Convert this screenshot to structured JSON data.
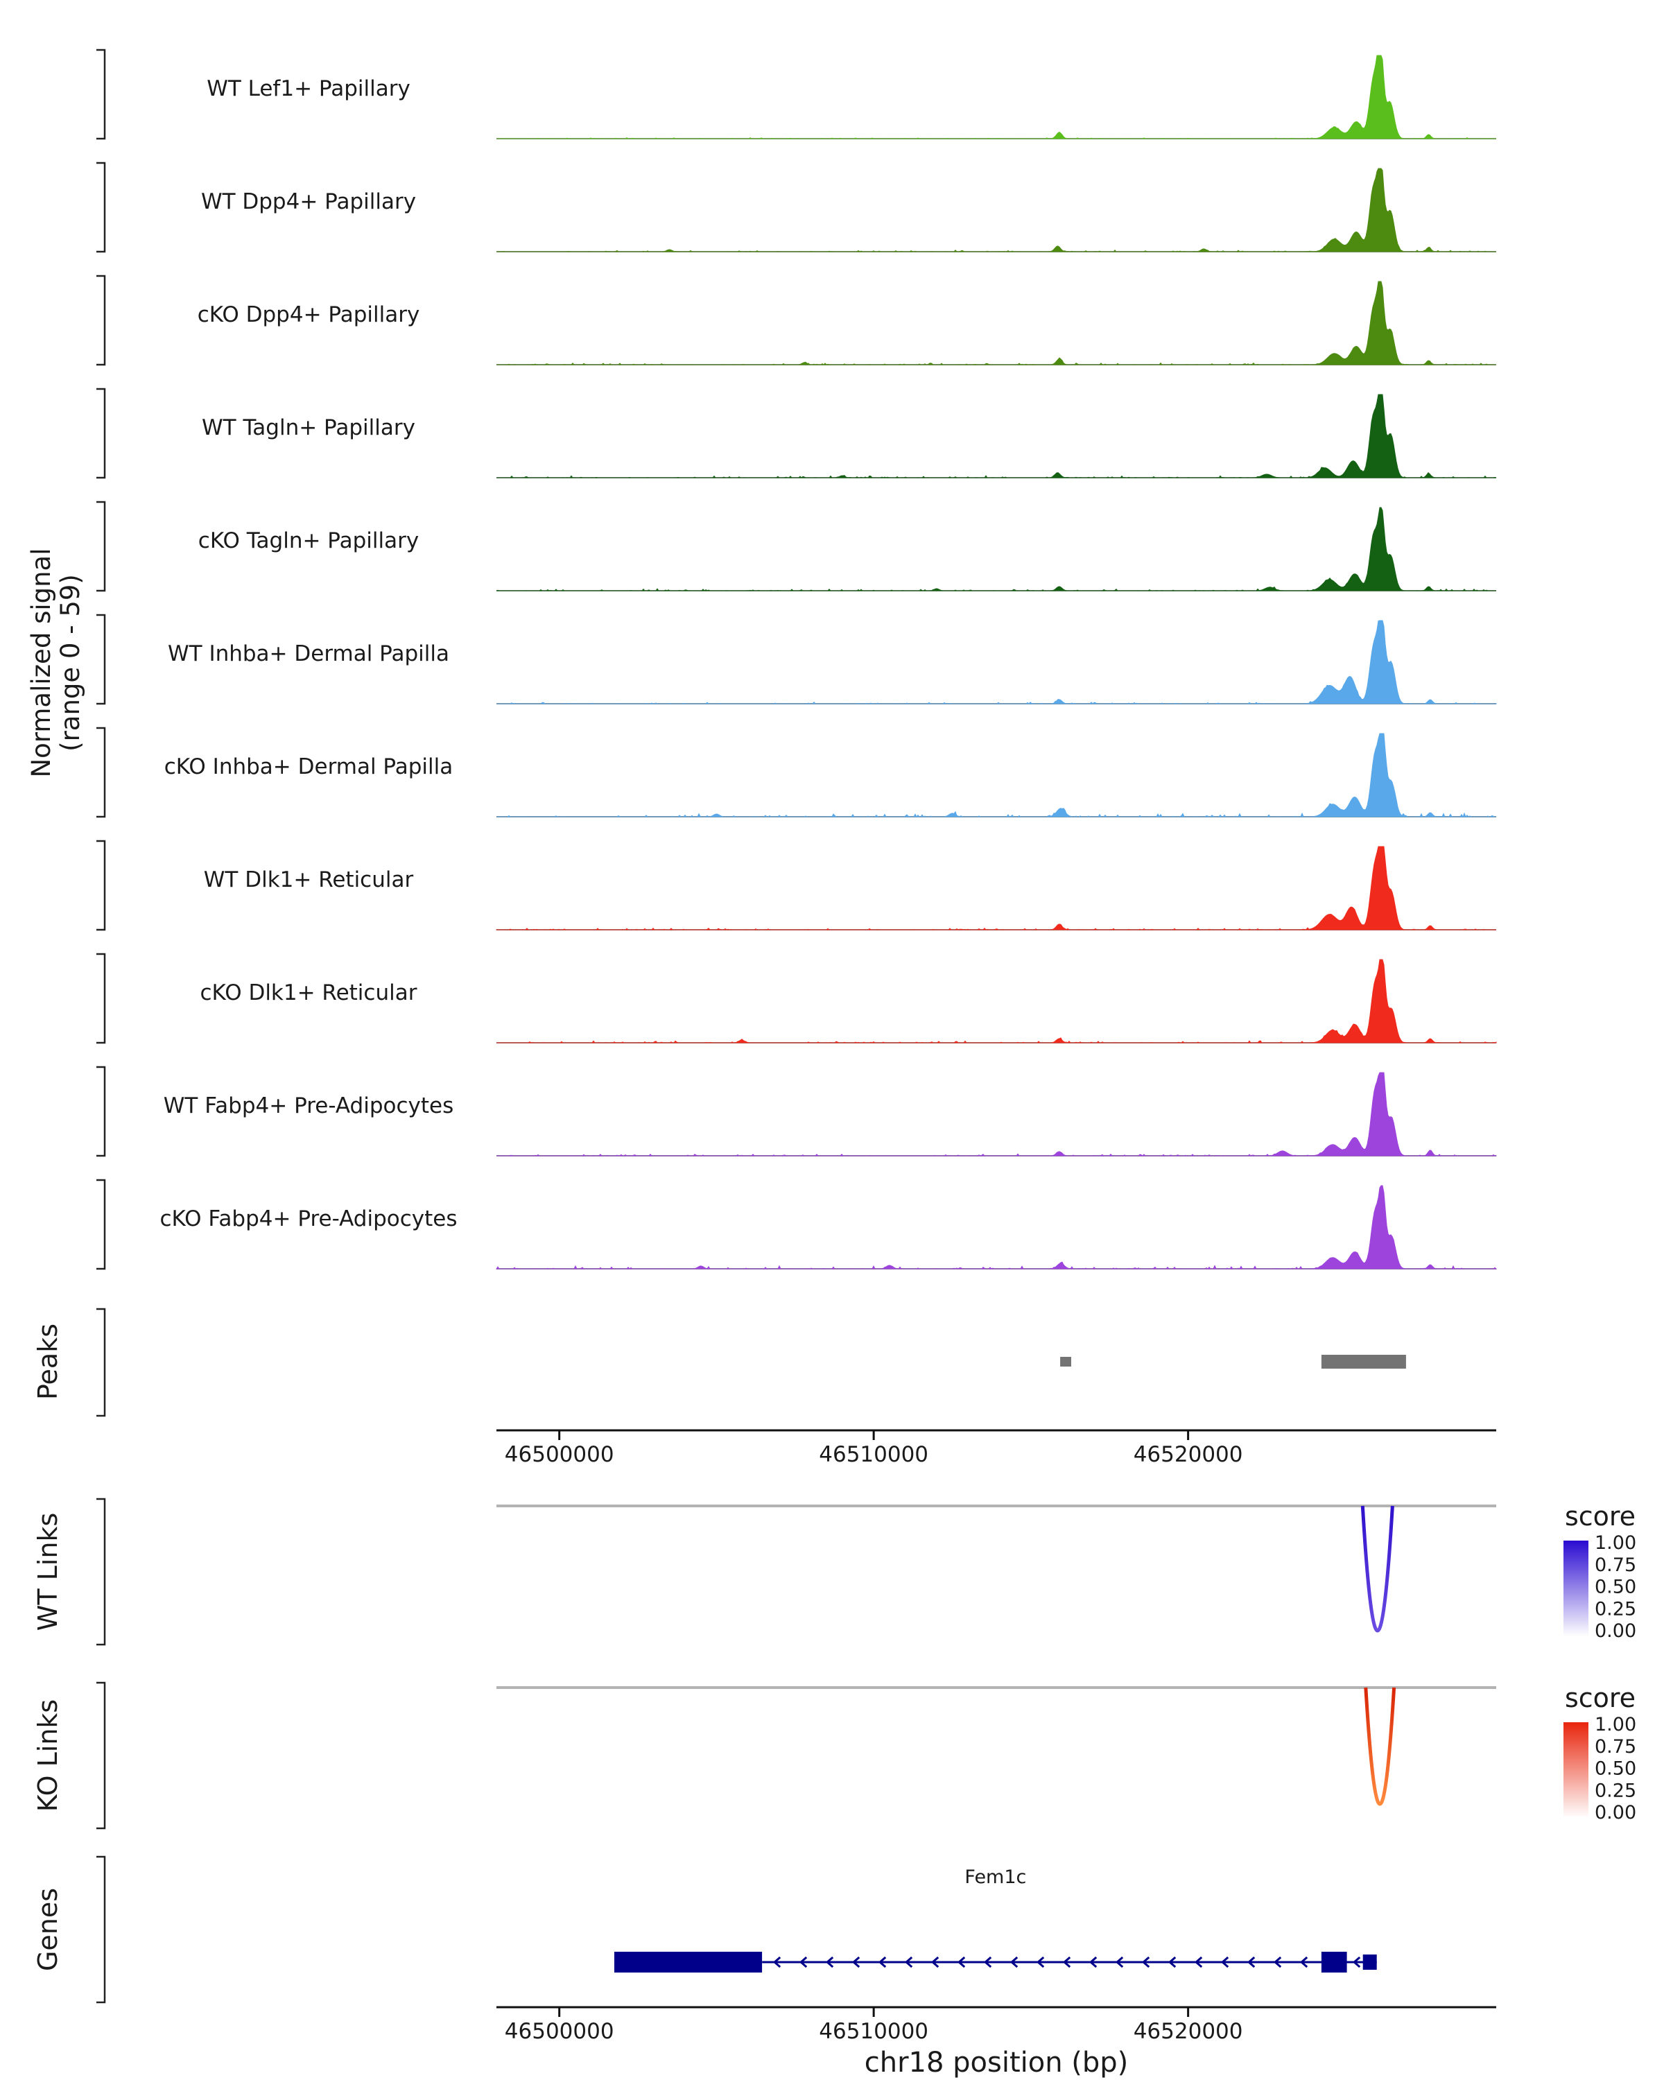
{
  "figure": {
    "y_axis_label_line1": "Normalized signal",
    "y_axis_label_line2": "(range 0 - 59)",
    "peaks_section_label": "Peaks",
    "wt_links_section_label": "WT Links",
    "ko_links_section_label": "KO Links",
    "genes_section_label": "Genes",
    "x_axis_title": "chr18 position (bp)"
  },
  "chart_data": {
    "type": "area",
    "title": "",
    "x_axis": {
      "label": "chr18 position (bp)",
      "bp_min": 46498000,
      "bp_max": 46529800,
      "ticks": [
        46500000,
        46510000,
        46520000
      ],
      "tick_labels": [
        "46500000",
        "46510000",
        "46520000"
      ]
    },
    "y_axis": {
      "label": "Normalized signal (range 0 - 59)",
      "range": [
        0,
        59
      ]
    },
    "signal_tracks": [
      {
        "name": "WT Lef1+ Papillary",
        "color": "#5ABF1C",
        "seed": 11,
        "noise": 1.0,
        "peaks": [
          [
            46515900,
            90,
            4.5
          ],
          [
            46524650,
            220,
            8
          ],
          [
            46525350,
            180,
            12
          ],
          [
            46525900,
            130,
            42
          ],
          [
            46526120,
            95,
            59
          ],
          [
            46526420,
            130,
            26
          ],
          [
            46527650,
            70,
            3
          ]
        ]
      },
      {
        "name": "WT Dpp4+ Papillary",
        "color": "#4C8A10",
        "seed": 22,
        "noise": 1.4,
        "peaks": [
          [
            46503500,
            80,
            1.5
          ],
          [
            46515850,
            90,
            4
          ],
          [
            46520500,
            90,
            2
          ],
          [
            46524650,
            220,
            9
          ],
          [
            46525350,
            180,
            14
          ],
          [
            46525900,
            130,
            45
          ],
          [
            46526130,
            95,
            57
          ],
          [
            46526430,
            130,
            29
          ],
          [
            46527650,
            70,
            3
          ]
        ]
      },
      {
        "name": "cKO Dpp4+ Papillary",
        "color": "#4C8A10",
        "seed": 33,
        "noise": 1.4,
        "peaks": [
          [
            46507800,
            80,
            1.5
          ],
          [
            46515900,
            90,
            4
          ],
          [
            46524650,
            220,
            8
          ],
          [
            46525350,
            180,
            13
          ],
          [
            46525900,
            130,
            40
          ],
          [
            46526130,
            95,
            55
          ],
          [
            46526430,
            130,
            25
          ],
          [
            46527650,
            70,
            3
          ]
        ]
      },
      {
        "name": "WT Tagln+ Papillary",
        "color": "#146114",
        "seed": 44,
        "noise": 1.7,
        "peaks": [
          [
            46509000,
            80,
            1.5
          ],
          [
            46515850,
            90,
            3.5
          ],
          [
            46522500,
            150,
            2.5
          ],
          [
            46524350,
            200,
            7
          ],
          [
            46525250,
            180,
            12
          ],
          [
            46525900,
            130,
            44
          ],
          [
            46526140,
            95,
            59
          ],
          [
            46526440,
            130,
            31
          ],
          [
            46527650,
            70,
            3
          ]
        ]
      },
      {
        "name": "cKO Tagln+ Papillary",
        "color": "#146114",
        "seed": 55,
        "noise": 1.7,
        "peaks": [
          [
            46512000,
            80,
            1.5
          ],
          [
            46515900,
            90,
            3
          ],
          [
            46522600,
            150,
            2.5
          ],
          [
            46524500,
            220,
            8
          ],
          [
            46525300,
            180,
            12
          ],
          [
            46525910,
            130,
            40
          ],
          [
            46526150,
            95,
            52
          ],
          [
            46526440,
            130,
            25
          ],
          [
            46527650,
            70,
            3
          ]
        ]
      },
      {
        "name": "WT Inhba+ Dermal Papilla",
        "color": "#58A8EA",
        "seed": 66,
        "noise": 1.3,
        "peaks": [
          [
            46515900,
            90,
            3
          ],
          [
            46524500,
            250,
            13
          ],
          [
            46525150,
            180,
            19
          ],
          [
            46525920,
            140,
            42
          ],
          [
            46526160,
            100,
            57
          ],
          [
            46526460,
            130,
            29
          ],
          [
            46527700,
            70,
            3
          ]
        ]
      },
      {
        "name": "cKO Inhba+ Dermal Papilla",
        "color": "#58A8EA",
        "seed": 77,
        "noise": 2.6,
        "peaks": [
          [
            46505000,
            90,
            2
          ],
          [
            46512500,
            100,
            2.5
          ],
          [
            46515950,
            130,
            6
          ],
          [
            46524600,
            220,
            9
          ],
          [
            46525300,
            180,
            14
          ],
          [
            46525950,
            130,
            44
          ],
          [
            46526180,
            95,
            57
          ],
          [
            46526460,
            130,
            25
          ],
          [
            46527700,
            70,
            3
          ]
        ]
      },
      {
        "name": "WT Dlk1+ Reticular",
        "color": "#F02A1C",
        "seed": 88,
        "noise": 1.5,
        "peaks": [
          [
            46515900,
            90,
            4
          ],
          [
            46524500,
            250,
            11
          ],
          [
            46525200,
            180,
            16
          ],
          [
            46525950,
            140,
            46
          ],
          [
            46526180,
            100,
            55
          ],
          [
            46526460,
            130,
            27
          ],
          [
            46527700,
            70,
            3
          ]
        ]
      },
      {
        "name": "cKO Dlk1+ Reticular",
        "color": "#F02A1C",
        "seed": 99,
        "noise": 1.6,
        "peaks": [
          [
            46505800,
            90,
            2
          ],
          [
            46515900,
            90,
            3
          ],
          [
            46524600,
            220,
            9
          ],
          [
            46525300,
            180,
            13
          ],
          [
            46525950,
            130,
            42
          ],
          [
            46526180,
            95,
            53
          ],
          [
            46526470,
            130,
            24
          ],
          [
            46527700,
            70,
            3
          ]
        ]
      },
      {
        "name": "WT Fabp4+ Pre-Adipocytes",
        "color": "#9D44DD",
        "seed": 110,
        "noise": 1.5,
        "peaks": [
          [
            46515900,
            90,
            3
          ],
          [
            46523000,
            150,
            3.5
          ],
          [
            46524600,
            220,
            8
          ],
          [
            46525300,
            180,
            13
          ],
          [
            46525950,
            130,
            46
          ],
          [
            46526180,
            95,
            57
          ],
          [
            46526470,
            130,
            27
          ],
          [
            46527700,
            70,
            4
          ]
        ]
      },
      {
        "name": "cKO Fabp4+ Pre-Adipocytes",
        "color": "#9D44DD",
        "seed": 121,
        "noise": 2.4,
        "peaks": [
          [
            46504500,
            90,
            2
          ],
          [
            46510500,
            100,
            2.5
          ],
          [
            46515950,
            110,
            4
          ],
          [
            46524600,
            220,
            8
          ],
          [
            46525300,
            180,
            12
          ],
          [
            46525950,
            130,
            40
          ],
          [
            46526180,
            95,
            52
          ],
          [
            46526470,
            130,
            23
          ],
          [
            46527700,
            70,
            3
          ]
        ]
      }
    ],
    "peak_regions": [
      {
        "start": 46515930,
        "end": 46516280
      },
      {
        "start": 46524240,
        "end": 46526930
      }
    ],
    "links": {
      "wt": {
        "label": "WT Links",
        "arc": {
          "start": 46525550,
          "end": 46526500
        },
        "colors": {
          "top": "#2F10CC",
          "bottom": "#6A4BE2"
        },
        "legend": {
          "title": "score",
          "tick_labels": [
            "1.00",
            "0.75",
            "0.50",
            "0.25",
            "0.00"
          ],
          "top_color": "#2A0BD1",
          "bottom_color": "#FFFFFF"
        }
      },
      "ko": {
        "label": "KO Links",
        "arc": {
          "start": 46525650,
          "end": 46526550
        },
        "colors": {
          "top": "#D92407",
          "bottom": "#FF8A3C"
        },
        "legend": {
          "title": "score",
          "tick_labels": [
            "1.00",
            "0.75",
            "0.50",
            "0.25",
            "0.00"
          ],
          "top_color": "#E8250C",
          "bottom_color": "#FFFFFF"
        }
      }
    },
    "genes": [
      {
        "name": "Fem1c",
        "strand": "-",
        "color": "#00008B",
        "exons": [
          {
            "start": 46501750,
            "end": 46506450,
            "height": "tall"
          },
          {
            "start": 46524240,
            "end": 46525050,
            "height": "tall"
          },
          {
            "start": 46525560,
            "end": 46526000,
            "height": "short"
          }
        ],
        "span": {
          "start": 46501750,
          "end": 46526000
        }
      }
    ]
  }
}
